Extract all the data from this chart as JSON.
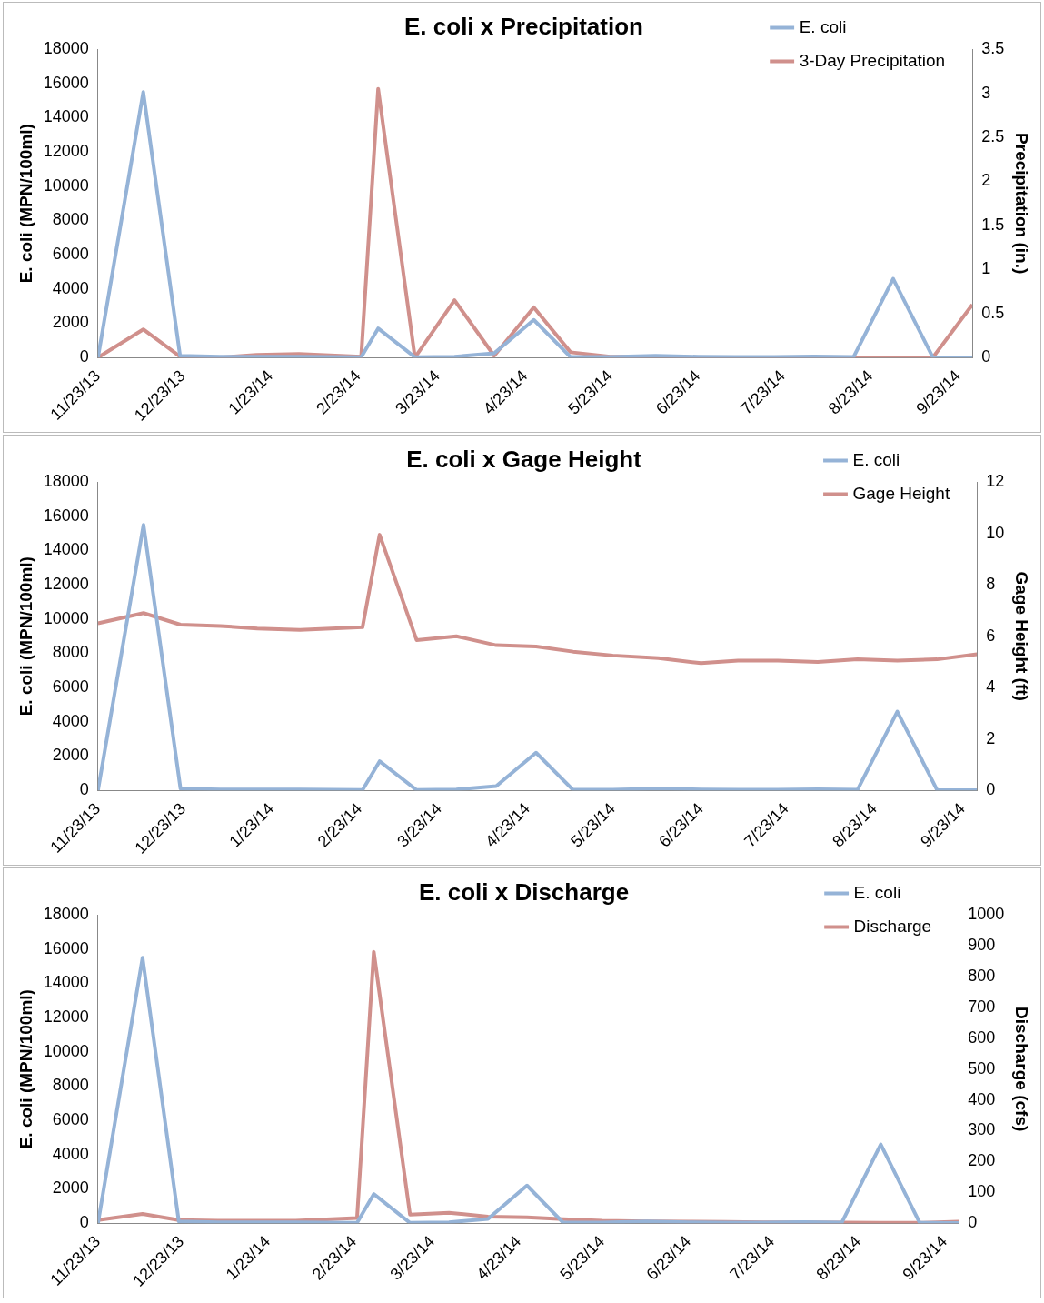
{
  "chart_data": [
    {
      "type": "line",
      "title": "E. coli x Precipitation",
      "ylabel": "E. coli (MPN/100ml)",
      "y2label": "Precipitation (in.)",
      "legend": "top right",
      "x": [
        "2013-11-23",
        "2013-12-09",
        "2013-12-22",
        "2014-01-05",
        "2014-01-18",
        "2014-02-02",
        "2014-02-24",
        "2014-03-02",
        "2014-03-15",
        "2014-03-29",
        "2014-04-12",
        "2014-04-26",
        "2014-05-09",
        "2014-05-23",
        "2014-06-08",
        "2014-06-23",
        "2014-07-06",
        "2014-07-20",
        "2014-08-03",
        "2014-08-17",
        "2014-08-31",
        "2014-09-14",
        "2014-09-28"
      ],
      "xlim": [
        "2013-11-23",
        "2014-09-28"
      ],
      "xticks": [
        {
          "value": "2013-11-23",
          "label": "11/23/13"
        },
        {
          "value": "2013-12-23",
          "label": "12/23/13"
        },
        {
          "value": "2014-01-23",
          "label": "1/23/14"
        },
        {
          "value": "2014-02-23",
          "label": "2/23/14"
        },
        {
          "value": "2014-03-23",
          "label": "3/23/14"
        },
        {
          "value": "2014-04-23",
          "label": "4/23/14"
        },
        {
          "value": "2014-05-23",
          "label": "5/23/14"
        },
        {
          "value": "2014-06-23",
          "label": "6/23/14"
        },
        {
          "value": "2014-07-23",
          "label": "7/23/14"
        },
        {
          "value": "2014-08-23",
          "label": "8/23/14"
        },
        {
          "value": "2014-09-23",
          "label": "9/23/14"
        }
      ],
      "ylim": [
        0,
        18000
      ],
      "yticks": [
        0,
        2000,
        4000,
        6000,
        8000,
        10000,
        12000,
        14000,
        16000,
        18000
      ],
      "y2lim": [
        0,
        3.5
      ],
      "y2ticks": [
        0,
        0.5,
        1,
        1.5,
        2,
        2.5,
        3,
        3.5
      ],
      "series": [
        {
          "name": "E. coli",
          "color": "#95b3d7",
          "values": [
            0,
            15500,
            100,
            50,
            50,
            50,
            20,
            1700,
            20,
            50,
            250,
            2200,
            30,
            30,
            100,
            50,
            30,
            30,
            60,
            30,
            4600,
            20,
            10
          ]
        },
        {
          "name": "3-Day Precipitation",
          "color": "#d0908c",
          "axis": "y2",
          "values": [
            0,
            0.32,
            0.01,
            0,
            0.03,
            0.04,
            0.01,
            3.05,
            0,
            0.65,
            0.02,
            0.57,
            0.06,
            0.01,
            0.01,
            0,
            0,
            0,
            0,
            0,
            0,
            0,
            0.6
          ]
        }
      ]
    },
    {
      "type": "line",
      "title": "E. coli x Gage Height",
      "ylabel": "E. coli (MPN/100ml)",
      "y2label": "Gage Height (ft)",
      "legend": "top right",
      "x": [
        "2013-11-23",
        "2013-12-09",
        "2013-12-22",
        "2014-01-05",
        "2014-01-18",
        "2014-02-02",
        "2014-02-24",
        "2014-03-02",
        "2014-03-15",
        "2014-03-29",
        "2014-04-12",
        "2014-04-26",
        "2014-05-09",
        "2014-05-23",
        "2014-06-08",
        "2014-06-23",
        "2014-07-06",
        "2014-07-20",
        "2014-08-03",
        "2014-08-17",
        "2014-08-31",
        "2014-09-14",
        "2014-09-28"
      ],
      "xlim": [
        "2013-11-23",
        "2014-09-28"
      ],
      "xticks": [
        {
          "value": "2013-11-23",
          "label": "11/23/13"
        },
        {
          "value": "2013-12-23",
          "label": "12/23/13"
        },
        {
          "value": "2014-01-23",
          "label": "1/23/14"
        },
        {
          "value": "2014-02-23",
          "label": "2/23/14"
        },
        {
          "value": "2014-03-23",
          "label": "3/23/14"
        },
        {
          "value": "2014-04-23",
          "label": "4/23/14"
        },
        {
          "value": "2014-05-23",
          "label": "5/23/14"
        },
        {
          "value": "2014-06-23",
          "label": "6/23/14"
        },
        {
          "value": "2014-07-23",
          "label": "7/23/14"
        },
        {
          "value": "2014-08-23",
          "label": "8/23/14"
        },
        {
          "value": "2014-09-23",
          "label": "9/23/14"
        }
      ],
      "ylim": [
        0,
        18000
      ],
      "yticks": [
        0,
        2000,
        4000,
        6000,
        8000,
        10000,
        12000,
        14000,
        16000,
        18000
      ],
      "y2lim": [
        0,
        12
      ],
      "y2ticks": [
        0,
        2,
        4,
        6,
        8,
        10,
        12
      ],
      "series": [
        {
          "name": "E. coli",
          "color": "#95b3d7",
          "values": [
            0,
            15500,
            100,
            50,
            50,
            50,
            20,
            1700,
            20,
            50,
            250,
            2200,
            30,
            30,
            100,
            50,
            30,
            30,
            60,
            30,
            4600,
            20,
            10
          ]
        },
        {
          "name": "Gage Height",
          "color": "#d0908c",
          "axis": "y2",
          "values": [
            6.5,
            6.9,
            6.45,
            6.4,
            6.3,
            6.25,
            6.35,
            9.95,
            5.85,
            6.0,
            5.65,
            5.6,
            5.4,
            5.25,
            5.15,
            4.95,
            5.05,
            5.05,
            5.0,
            5.1,
            5.05,
            5.1,
            5.3
          ]
        }
      ]
    },
    {
      "type": "line",
      "title": "E. coli x Discharge",
      "ylabel": "E. coli (MPN/100ml)",
      "y2label": "Discharge (cfs)",
      "legend": "top right",
      "x": [
        "2013-11-23",
        "2013-12-09",
        "2013-12-22",
        "2014-01-05",
        "2014-01-18",
        "2014-02-02",
        "2014-02-24",
        "2014-03-02",
        "2014-03-15",
        "2014-03-29",
        "2014-04-12",
        "2014-04-26",
        "2014-05-09",
        "2014-05-23",
        "2014-06-08",
        "2014-06-23",
        "2014-07-06",
        "2014-07-20",
        "2014-08-03",
        "2014-08-17",
        "2014-08-31",
        "2014-09-14",
        "2014-09-28"
      ],
      "xlim": [
        "2013-11-23",
        "2014-09-28"
      ],
      "xticks": [
        {
          "value": "2013-11-23",
          "label": "11/23/13"
        },
        {
          "value": "2013-12-23",
          "label": "12/23/13"
        },
        {
          "value": "2014-01-23",
          "label": "1/23/14"
        },
        {
          "value": "2014-02-23",
          "label": "2/23/14"
        },
        {
          "value": "2014-03-23",
          "label": "3/23/14"
        },
        {
          "value": "2014-04-23",
          "label": "4/23/14"
        },
        {
          "value": "2014-05-23",
          "label": "5/23/14"
        },
        {
          "value": "2014-06-23",
          "label": "6/23/14"
        },
        {
          "value": "2014-07-23",
          "label": "7/23/14"
        },
        {
          "value": "2014-08-23",
          "label": "8/23/14"
        },
        {
          "value": "2014-09-23",
          "label": "9/23/14"
        }
      ],
      "ylim": [
        0,
        18000
      ],
      "yticks": [
        0,
        2000,
        4000,
        6000,
        8000,
        10000,
        12000,
        14000,
        16000,
        18000
      ],
      "y2lim": [
        0,
        1000
      ],
      "y2ticks": [
        0,
        100,
        200,
        300,
        400,
        500,
        600,
        700,
        800,
        900,
        1000
      ],
      "series": [
        {
          "name": "E. coli",
          "color": "#95b3d7",
          "values": [
            0,
            15500,
            100,
            50,
            50,
            50,
            20,
            1700,
            20,
            50,
            250,
            2200,
            30,
            30,
            100,
            50,
            30,
            30,
            60,
            30,
            4600,
            20,
            10
          ]
        },
        {
          "name": "Discharge",
          "color": "#d0908c",
          "axis": "y2",
          "values": [
            10,
            30,
            10,
            8,
            8,
            8,
            17,
            880,
            28,
            34,
            21,
            19,
            13,
            8,
            6,
            5,
            4,
            3,
            3,
            2,
            1,
            1,
            5
          ]
        }
      ]
    }
  ]
}
